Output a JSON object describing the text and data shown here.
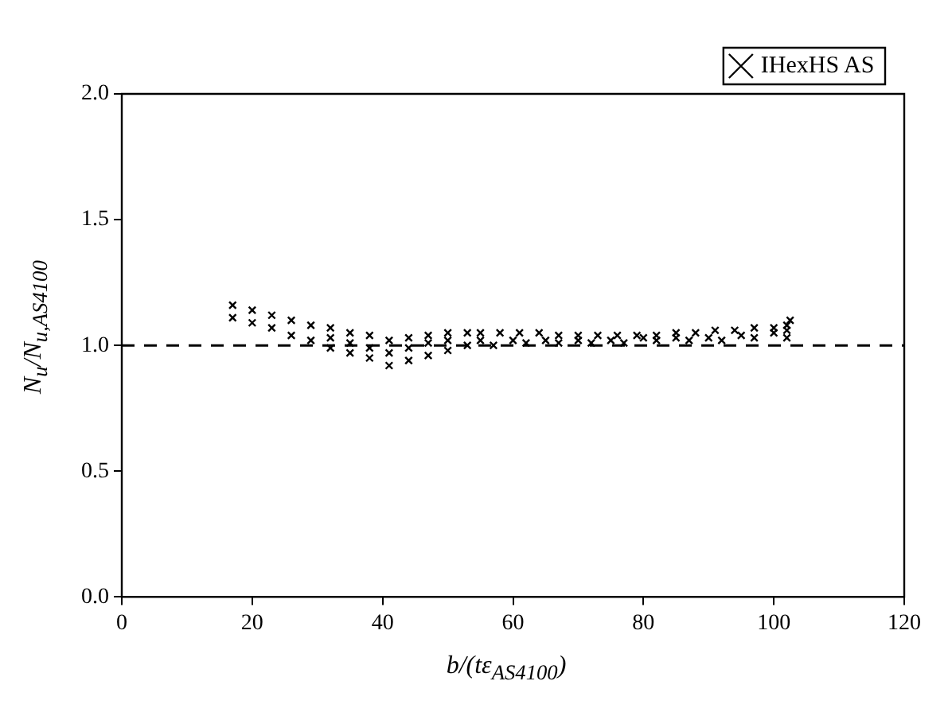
{
  "chart_data": {
    "type": "scatter",
    "xlabel": "b/(tε$_{AS4100}$)",
    "ylabel": "N$_{u}$/N$_{u,AS4100}$",
    "xlim": [
      0,
      120
    ],
    "xticks": [
      0,
      20,
      40,
      60,
      80,
      100,
      120
    ],
    "ylim": [
      0,
      2
    ],
    "yticks": [
      {
        "value": 0,
        "label": "0.0"
      },
      {
        "value": 0.5,
        "label": "0.5"
      },
      {
        "value": 1,
        "label": "1.0"
      },
      {
        "value": 1.5,
        "label": "1.5"
      },
      {
        "value": 2,
        "label": "2.0"
      }
    ],
    "grid": false,
    "legend": "top right",
    "marker": "cross",
    "ref_lines": [
      {
        "axis": "y",
        "value": 1,
        "label": null,
        "color": "#000000",
        "line_style": "dashed"
      }
    ],
    "series": [
      {
        "name": "IHexHS AS",
        "color": "#000000",
        "x": [
          17,
          20,
          23,
          26,
          29,
          32,
          35,
          38,
          41,
          44,
          47,
          50,
          53,
          55,
          58,
          61,
          64,
          67,
          70,
          73,
          76,
          79,
          82,
          85,
          88,
          91,
          94,
          97,
          100,
          102,
          102.5,
          32,
          35,
          38,
          41,
          44,
          47,
          50,
          55,
          60,
          65,
          70,
          75,
          80,
          85,
          90,
          95,
          100,
          102,
          17,
          20,
          23,
          26,
          29,
          32,
          35,
          38,
          41,
          44,
          47,
          50,
          53,
          57,
          62,
          67,
          72,
          77,
          82,
          87,
          92,
          97,
          102
        ],
        "values": [
          1.16,
          1.14,
          1.12,
          1.1,
          1.08,
          1.07,
          1.05,
          1.04,
          1.02,
          1.03,
          1.04,
          1.05,
          1.05,
          1.05,
          1.05,
          1.05,
          1.05,
          1.04,
          1.04,
          1.04,
          1.04,
          1.04,
          1.04,
          1.05,
          1.05,
          1.06,
          1.06,
          1.07,
          1.07,
          1.08,
          1.1,
          1.03,
          1.01,
          0.99,
          0.97,
          0.99,
          1.01,
          1.02,
          1.02,
          1.02,
          1.02,
          1.02,
          1.02,
          1.03,
          1.03,
          1.03,
          1.04,
          1.05,
          1.06,
          1.11,
          1.09,
          1.07,
          1.04,
          1.02,
          0.99,
          0.97,
          0.95,
          0.92,
          0.94,
          0.96,
          0.98,
          1.0,
          1.0,
          1.01,
          1.01,
          1.01,
          1.01,
          1.02,
          1.02,
          1.02,
          1.03,
          1.03
        ]
      }
    ]
  }
}
